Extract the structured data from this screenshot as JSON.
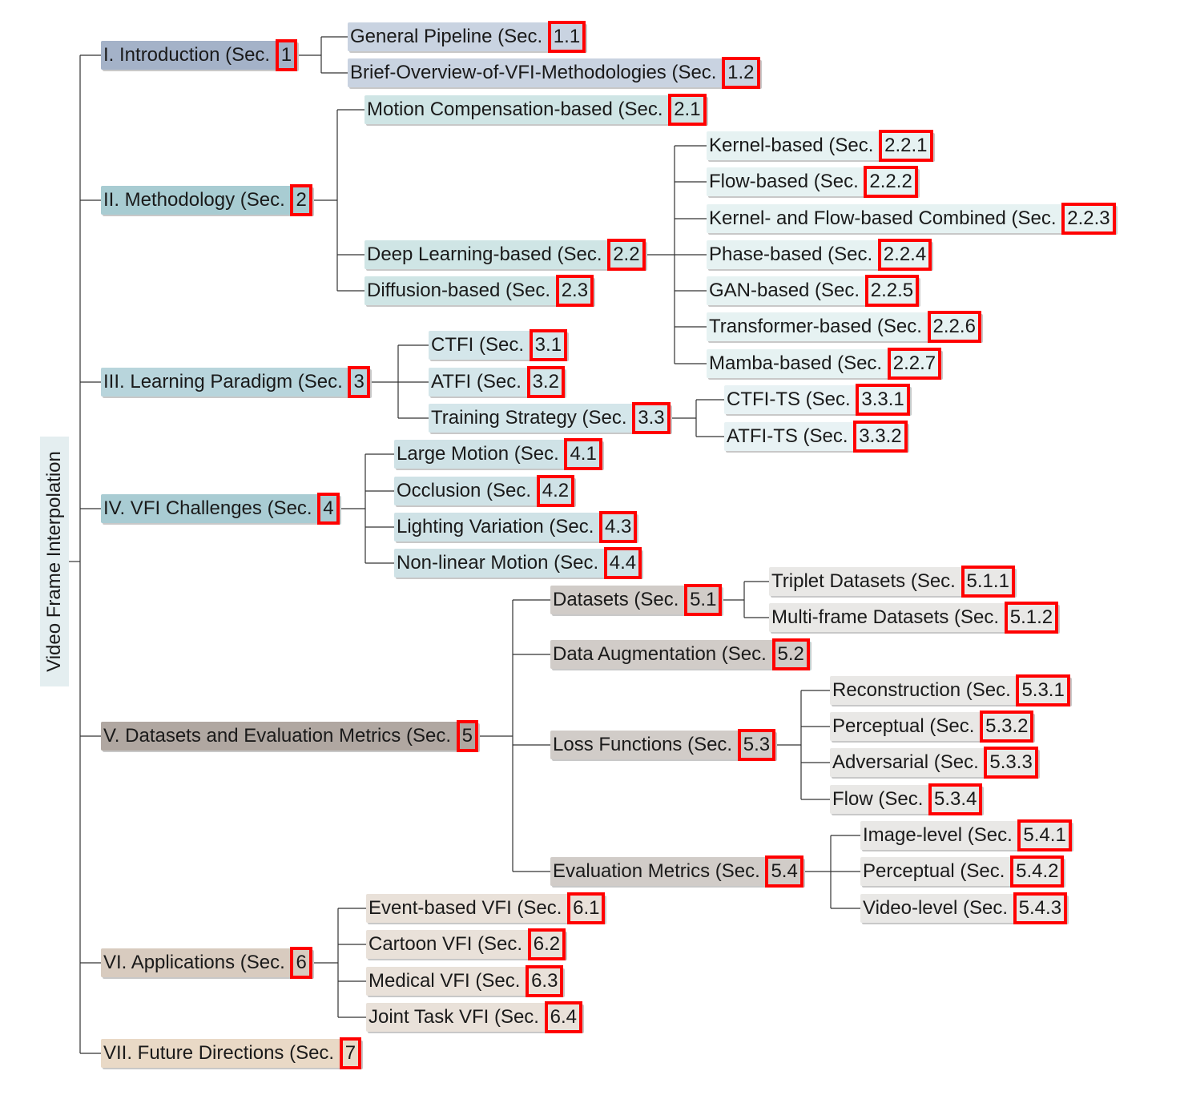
{
  "root": {
    "label": "Video Frame Interpolation"
  },
  "colors": {
    "sec1": "#a4b2c8",
    "sec1_child": "#c9d3e1",
    "sec2": "#a8ccd2",
    "sec2_child": "#cfe5e5",
    "sec2_grandchild": "#e6f2f2",
    "sec3": "#b8d5dc",
    "sec3_child": "#d4e6ea",
    "sec3_grandchild": "#e8f2f4",
    "sec4": "#a9ccd3",
    "sec4_child": "#cfe2e6",
    "sec5": "#b0a7a1",
    "sec5_child": "#d1ccc8",
    "sec5_grandchild": "#e9e8e6",
    "sec6": "#d8cbbf",
    "sec6_child": "#e9e1d9",
    "sec7": "#e9d9c6",
    "highlight_box": "#ff0000",
    "connector": "#333333"
  },
  "nodes": [
    {
      "id": "s1",
      "parent": "root",
      "prefix": "I. Introduction (Sec. ",
      "num": "1",
      "suffix": ""
    },
    {
      "id": "s1_1",
      "parent": "s1",
      "prefix": "General Pipeline (Sec. ",
      "num": "1.1",
      "suffix": ""
    },
    {
      "id": "s1_2",
      "parent": "s1",
      "prefix": "Brief-Overview-of-VFI-Methodologies (Sec. ",
      "num": "1.2",
      "suffix": ""
    },
    {
      "id": "s2",
      "parent": "root",
      "prefix": "II. Methodology (Sec. ",
      "num": "2",
      "suffix": ""
    },
    {
      "id": "s2_1",
      "parent": "s2",
      "prefix": "Motion Compensation-based (Sec. ",
      "num": "2.1",
      "suffix": ""
    },
    {
      "id": "s2_2",
      "parent": "s2",
      "prefix": "Deep Learning-based (Sec. ",
      "num": "2.2",
      "suffix": ""
    },
    {
      "id": "s2_3",
      "parent": "s2",
      "prefix": "Diffusion-based (Sec. ",
      "num": "2.3",
      "suffix": ""
    },
    {
      "id": "s2_2_1",
      "parent": "s2_2",
      "prefix": "Kernel-based (Sec. ",
      "num": "2.2.1",
      "suffix": ""
    },
    {
      "id": "s2_2_2",
      "parent": "s2_2",
      "prefix": "Flow-based (Sec. ",
      "num": "2.2.2",
      "suffix": ""
    },
    {
      "id": "s2_2_3",
      "parent": "s2_2",
      "prefix": "Kernel- and Flow-based Combined (Sec. ",
      "num": "2.2.3",
      "suffix": ""
    },
    {
      "id": "s2_2_4",
      "parent": "s2_2",
      "prefix": "Phase-based (Sec. ",
      "num": "2.2.4",
      "suffix": ""
    },
    {
      "id": "s2_2_5",
      "parent": "s2_2",
      "prefix": "GAN-based (Sec. ",
      "num": "2.2.5",
      "suffix": ""
    },
    {
      "id": "s2_2_6",
      "parent": "s2_2",
      "prefix": "Transformer-based (Sec. ",
      "num": "2.2.6",
      "suffix": ""
    },
    {
      "id": "s2_2_7",
      "parent": "s2_2",
      "prefix": "Mamba-based (Sec. ",
      "num": "2.2.7",
      "suffix": ""
    },
    {
      "id": "s3",
      "parent": "root",
      "prefix": "III. Learning Paradigm (Sec. ",
      "num": "3",
      "suffix": ""
    },
    {
      "id": "s3_1",
      "parent": "s3",
      "prefix": "CTFI (Sec. ",
      "num": "3.1",
      "suffix": ""
    },
    {
      "id": "s3_2",
      "parent": "s3",
      "prefix": "ATFI (Sec. ",
      "num": "3.2",
      "suffix": ""
    },
    {
      "id": "s3_3",
      "parent": "s3",
      "prefix": "Training Strategy (Sec. ",
      "num": "3.3",
      "suffix": ""
    },
    {
      "id": "s3_3_1",
      "parent": "s3_3",
      "prefix": "CTFI-TS (Sec. ",
      "num": "3.3.1",
      "suffix": ""
    },
    {
      "id": "s3_3_2",
      "parent": "s3_3",
      "prefix": "ATFI-TS (Sec. ",
      "num": "3.3.2",
      "suffix": ""
    },
    {
      "id": "s4",
      "parent": "root",
      "prefix": "IV. VFI Challenges (Sec. ",
      "num": "4",
      "suffix": ""
    },
    {
      "id": "s4_1",
      "parent": "s4",
      "prefix": "Large Motion (Sec. ",
      "num": "4.1",
      "suffix": ""
    },
    {
      "id": "s4_2",
      "parent": "s4",
      "prefix": "Occlusion (Sec. ",
      "num": "4.2",
      "suffix": ""
    },
    {
      "id": "s4_3",
      "parent": "s4",
      "prefix": "Lighting Variation (Sec. ",
      "num": "4.3",
      "suffix": ""
    },
    {
      "id": "s4_4",
      "parent": "s4",
      "prefix": "Non-linear Motion (Sec. ",
      "num": "4.4",
      "suffix": ""
    },
    {
      "id": "s5",
      "parent": "root",
      "prefix": "V. Datasets and Evaluation Metrics (Sec. ",
      "num": "5",
      "suffix": ""
    },
    {
      "id": "s5_1",
      "parent": "s5",
      "prefix": "Datasets (Sec. ",
      "num": "5.1",
      "suffix": ""
    },
    {
      "id": "s5_2",
      "parent": "s5",
      "prefix": "Data Augmentation (Sec. ",
      "num": "5.2",
      "suffix": ""
    },
    {
      "id": "s5_3",
      "parent": "s5",
      "prefix": "Loss Functions (Sec. ",
      "num": "5.3",
      "suffix": ""
    },
    {
      "id": "s5_4",
      "parent": "s5",
      "prefix": "Evaluation Metrics (Sec. ",
      "num": "5.4",
      "suffix": ""
    },
    {
      "id": "s5_1_1",
      "parent": "s5_1",
      "prefix": "Triplet Datasets (Sec. ",
      "num": "5.1.1",
      "suffix": ""
    },
    {
      "id": "s5_1_2",
      "parent": "s5_1",
      "prefix": "Multi-frame Datasets (Sec. ",
      "num": "5.1.2",
      "suffix": ""
    },
    {
      "id": "s5_3_1",
      "parent": "s5_3",
      "prefix": "Reconstruction (Sec. ",
      "num": "5.3.1",
      "suffix": ""
    },
    {
      "id": "s5_3_2",
      "parent": "s5_3",
      "prefix": "Perceptual (Sec. ",
      "num": "5.3.2",
      "suffix": ""
    },
    {
      "id": "s5_3_3",
      "parent": "s5_3",
      "prefix": "Adversarial (Sec. ",
      "num": "5.3.3",
      "suffix": ""
    },
    {
      "id": "s5_3_4",
      "parent": "s5_3",
      "prefix": "Flow (Sec. ",
      "num": "5.3.4",
      "suffix": ""
    },
    {
      "id": "s5_4_1",
      "parent": "s5_4",
      "prefix": "Image-level (Sec. ",
      "num": "5.4.1",
      "suffix": ""
    },
    {
      "id": "s5_4_2",
      "parent": "s5_4",
      "prefix": "Perceptual (Sec. ",
      "num": "5.4.2",
      "suffix": ""
    },
    {
      "id": "s5_4_3",
      "parent": "s5_4",
      "prefix": "Video-level (Sec. ",
      "num": "5.4.3",
      "suffix": ""
    },
    {
      "id": "s6",
      "parent": "root",
      "prefix": "VI. Applications (Sec. ",
      "num": "6",
      "suffix": ""
    },
    {
      "id": "s6_1",
      "parent": "s6",
      "prefix": "Event-based VFI (Sec. ",
      "num": "6.1",
      "suffix": ""
    },
    {
      "id": "s6_2",
      "parent": "s6",
      "prefix": "Cartoon VFI (Sec. ",
      "num": "6.2",
      "suffix": ""
    },
    {
      "id": "s6_3",
      "parent": "s6",
      "prefix": "Medical VFI (Sec. ",
      "num": "6.3",
      "suffix": ""
    },
    {
      "id": "s6_4",
      "parent": "s6",
      "prefix": "Joint Task VFI (Sec. ",
      "num": "6.4",
      "suffix": ""
    },
    {
      "id": "s7",
      "parent": "root",
      "prefix": "VII. Future Directions (Sec. ",
      "num": "7",
      "suffix": ""
    }
  ]
}
